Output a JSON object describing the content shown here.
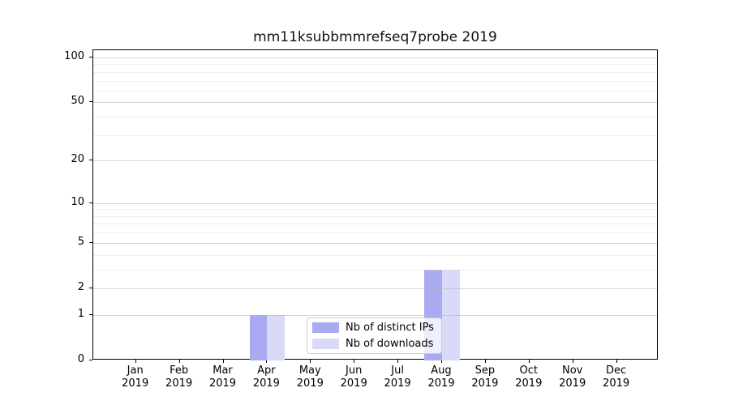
{
  "title": "mm11ksubbmmrefseq7probe 2019",
  "chart_data": {
    "type": "bar",
    "title": "mm11ksubbmmrefseq7probe 2019",
    "year": "2019",
    "months": [
      "Jan",
      "Feb",
      "Mar",
      "Apr",
      "May",
      "Jun",
      "Jul",
      "Aug",
      "Sep",
      "Oct",
      "Nov",
      "Dec"
    ],
    "categories": [
      "Jan 2019",
      "Feb 2019",
      "Mar 2019",
      "Apr 2019",
      "May 2019",
      "Jun 2019",
      "Jul 2019",
      "Aug 2019",
      "Sep 2019",
      "Oct 2019",
      "Nov 2019",
      "Dec 2019"
    ],
    "series": [
      {
        "name": "Nb of distinct IPs",
        "color": "#aaaaf0",
        "values": [
          0,
          0,
          0,
          1,
          0,
          0,
          0,
          3,
          0,
          0,
          0,
          0
        ]
      },
      {
        "name": "Nb of downloads",
        "color": "#d9d9f8",
        "values": [
          0,
          0,
          0,
          1,
          0,
          0,
          0,
          3,
          0,
          0,
          0,
          0
        ]
      }
    ],
    "y_scale": "log1p",
    "y_major_ticks": [
      0,
      1,
      2,
      5,
      10,
      20,
      50,
      100
    ],
    "y_minor_gridlines": [
      3,
      4,
      6,
      7,
      8,
      9,
      30,
      40,
      60,
      70,
      80,
      90
    ],
    "ylim": [
      0,
      112
    ],
    "xlabel": "",
    "ylabel": "",
    "grid": true,
    "legend_position": "lower center"
  }
}
